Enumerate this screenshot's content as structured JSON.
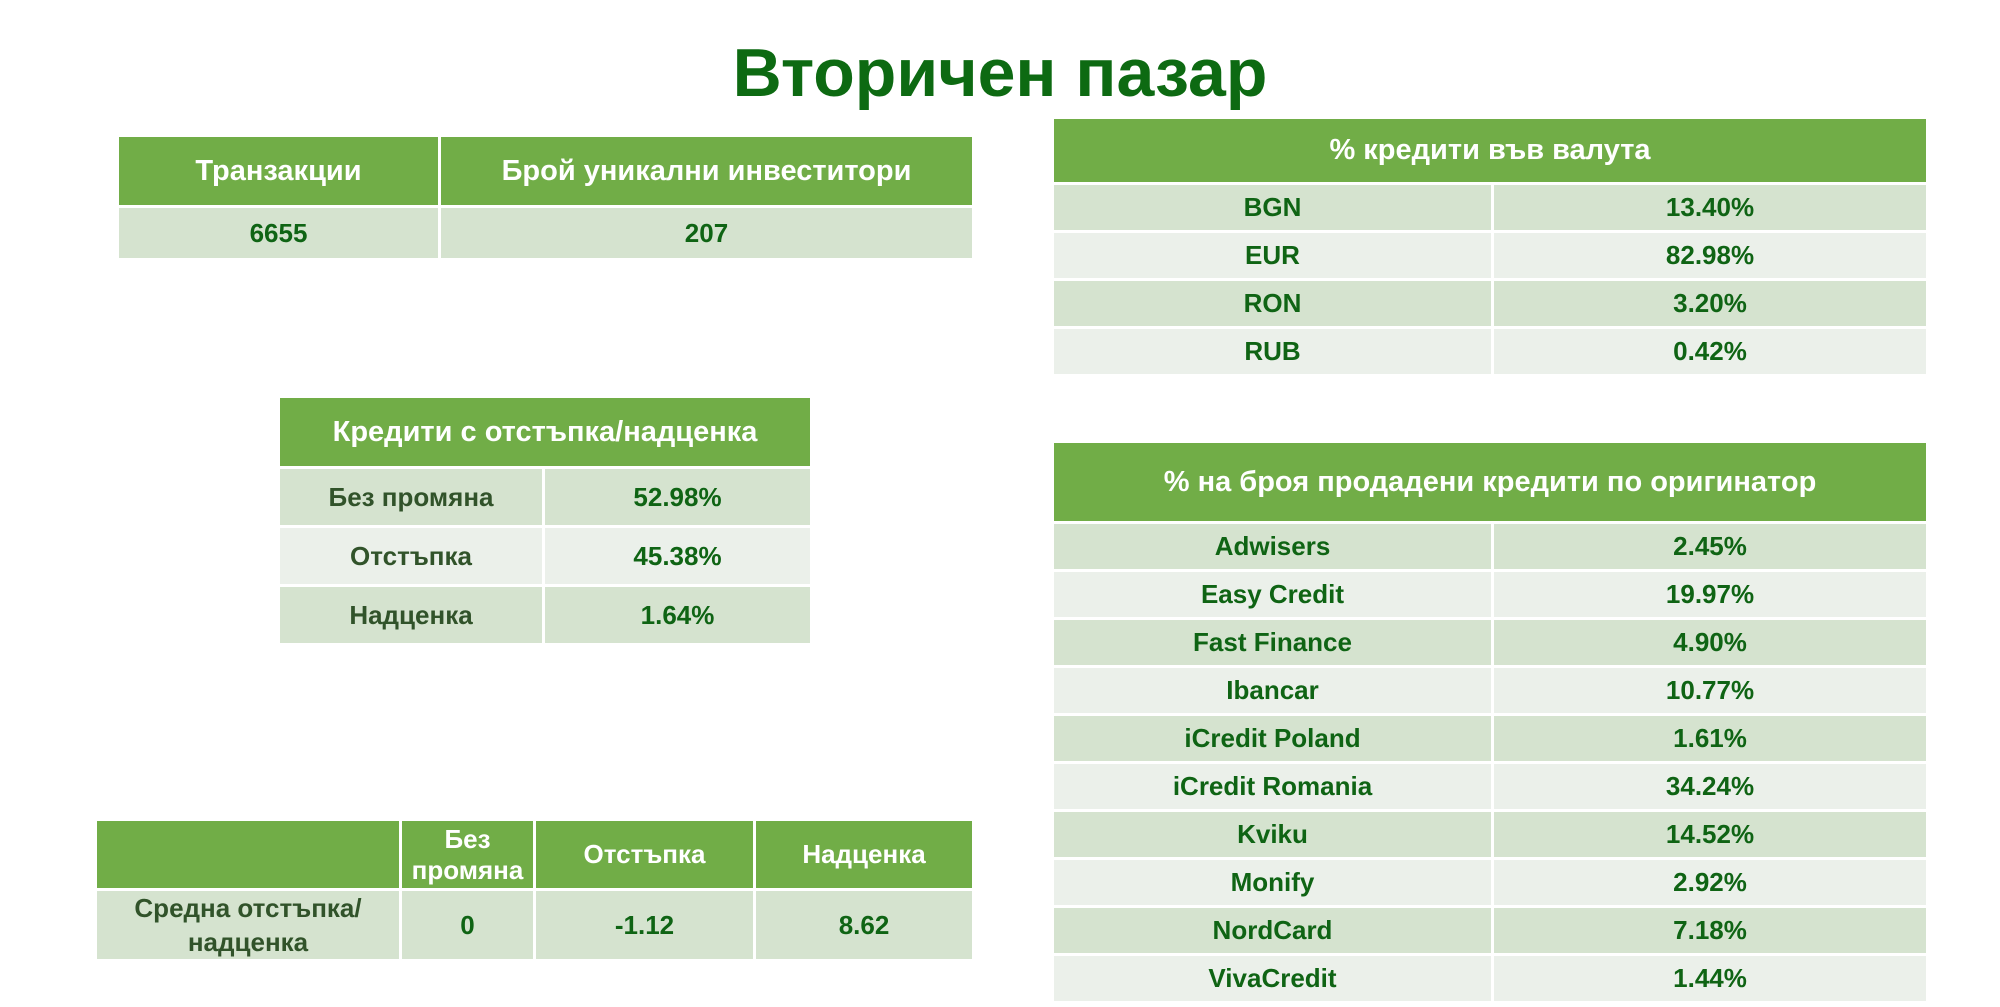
{
  "title": "Вторичен пазар",
  "summary": {
    "headers": [
      "Транзакции",
      "Брой уникални инвеститори"
    ],
    "values": [
      "6655",
      "207"
    ]
  },
  "discount": {
    "header": "Кредити с отстъпка/надценка",
    "rows": [
      {
        "label": "Без промяна",
        "value": "52.98%"
      },
      {
        "label": "Отстъпка",
        "value": "45.38%"
      },
      {
        "label": "Надценка",
        "value": "1.64%"
      }
    ]
  },
  "average": {
    "headers": [
      "",
      "Без промяна",
      "Отстъпка",
      "Надценка"
    ],
    "row_label": "Средна отстъпка/надценка",
    "values": [
      "0",
      "-1.12",
      "8.62"
    ]
  },
  "currency": {
    "header": "% кредити във валута",
    "rows": [
      {
        "label": "BGN",
        "value": "13.40%"
      },
      {
        "label": "EUR",
        "value": "82.98%"
      },
      {
        "label": "RON",
        "value": "3.20%"
      },
      {
        "label": "RUB",
        "value": "0.42%"
      }
    ]
  },
  "originators": {
    "header": "% на броя продадени кредити по оригинатор",
    "rows": [
      {
        "label": "Adwisers",
        "value": "2.45%"
      },
      {
        "label": "Easy Credit",
        "value": "19.97%"
      },
      {
        "label": "Fast Finance",
        "value": "4.90%"
      },
      {
        "label": "Ibancar",
        "value": "10.77%"
      },
      {
        "label": "iCredit Poland",
        "value": "1.61%"
      },
      {
        "label": "iCredit Romania",
        "value": "34.24%"
      },
      {
        "label": "Kviku",
        "value": "14.52%"
      },
      {
        "label": "Monify",
        "value": "2.92%"
      },
      {
        "label": "NordCard",
        "value": "7.18%"
      },
      {
        "label": "VivaCredit",
        "value": "1.44%"
      }
    ]
  }
}
